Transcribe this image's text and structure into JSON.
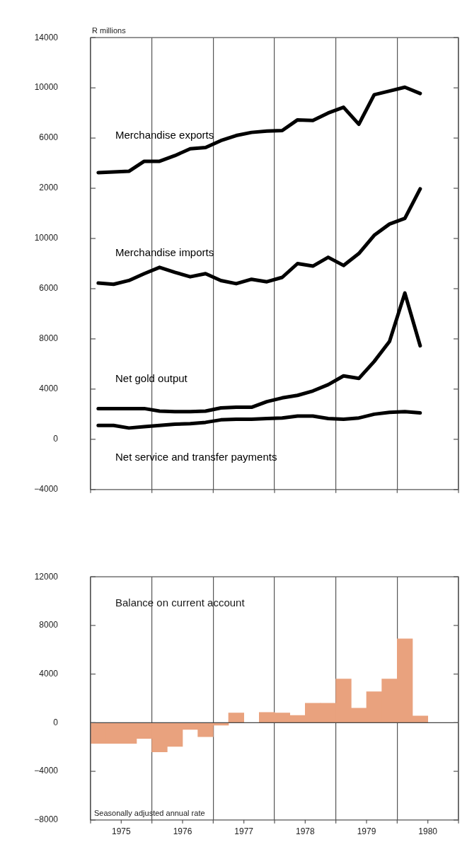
{
  "chart_data": [
    {
      "type": "line",
      "annotations": [
        "R millions"
      ],
      "x": [
        1975.125,
        1975.375,
        1975.625,
        1975.875,
        1976.125,
        1976.375,
        1976.625,
        1976.875,
        1977.125,
        1977.375,
        1977.625,
        1977.875,
        1978.125,
        1978.375,
        1978.625,
        1978.875,
        1979.125,
        1979.375,
        1979.625,
        1979.875,
        1980.125,
        1980.375
      ],
      "series": [
        {
          "name": "Merchandise exports",
          "color": "#000000",
          "axis": "y",
          "values": [
            3250,
            3300,
            3350,
            4150,
            4150,
            4600,
            5150,
            5250,
            5800,
            6200,
            6450,
            6550,
            6600,
            7450,
            7400,
            8000,
            8450,
            7100,
            9450,
            9750,
            10050,
            9550
          ]
        },
        {
          "name": "Merchandise imports",
          "color": "#000000",
          "axis": "y2",
          "values": [
            6450,
            6350,
            6650,
            7200,
            7700,
            7300,
            6950,
            7200,
            6650,
            6400,
            6750,
            6550,
            6900,
            8000,
            7800,
            8500,
            7850,
            8800,
            10250,
            11150,
            11600,
            13950
          ]
        },
        {
          "name": "Net gold output",
          "color": "#000000",
          "axis": "y3",
          "values": [
            2450,
            2450,
            2450,
            2450,
            2250,
            2200,
            2200,
            2250,
            2500,
            2550,
            2550,
            3000,
            3300,
            3500,
            3850,
            4350,
            5050,
            4850,
            6200,
            7800,
            11650,
            7450
          ]
        },
        {
          "name": "Net service and transfer payments",
          "color": "#000000",
          "axis": "y3",
          "values": [
            1100,
            1100,
            900,
            1000,
            1100,
            1200,
            1250,
            1350,
            1550,
            1600,
            1600,
            1650,
            1700,
            1850,
            1850,
            1650,
            1600,
            1700,
            2000,
            2150,
            2200,
            2100
          ]
        }
      ],
      "xlim": [
        1975,
        1981
      ],
      "xticks": [
        {
          "value": 1975,
          "label": null
        },
        {
          "value": 1976,
          "label": null
        },
        {
          "value": 1977,
          "label": null
        },
        {
          "value": 1978,
          "label": null
        },
        {
          "value": 1979,
          "label": null
        },
        {
          "value": 1980,
          "label": null
        },
        {
          "value": 1981,
          "label": null
        }
      ],
      "ylim": [
        -22000,
        14000
      ],
      "yticks": [
        2000,
        6000,
        10000,
        14000
      ],
      "y2lim": [
        -10000,
        26000
      ],
      "y2ticks": [
        6000,
        10000
      ],
      "y3lim": [
        -4000,
        32000
      ],
      "y3ticks": [
        -4000,
        0,
        4000,
        8000
      ],
      "grid": "x",
      "tick_labels": "y"
    },
    {
      "type": "bar",
      "x": [
        1975.125,
        1975.375,
        1975.625,
        1975.875,
        1976.125,
        1976.375,
        1976.625,
        1976.875,
        1977.125,
        1977.375,
        1977.625,
        1977.875,
        1978.125,
        1978.375,
        1978.625,
        1978.875,
        1979.125,
        1979.375,
        1979.625,
        1979.875,
        1980.125,
        1980.375
      ],
      "series": [
        {
          "name": "Balance on current account",
          "color": "#e9a27e",
          "values": [
            -1700,
            -1700,
            -1700,
            -1300,
            -2400,
            -1950,
            -550,
            -1150,
            -200,
            800,
            0,
            850,
            800,
            600,
            1600,
            1600,
            3600,
            1200,
            2550,
            3600,
            6900,
            550
          ]
        }
      ],
      "xlim": [
        1975,
        1981
      ],
      "xticks": [
        {
          "value": 1975,
          "label": null
        },
        {
          "value": 1975.5,
          "label": "1975"
        },
        {
          "value": 1976,
          "label": null
        },
        {
          "value": 1976.5,
          "label": "1976"
        },
        {
          "value": 1977,
          "label": null
        },
        {
          "value": 1977.5,
          "label": "1977"
        },
        {
          "value": 1978,
          "label": null
        },
        {
          "value": 1978.5,
          "label": "1978"
        },
        {
          "value": 1979,
          "label": null
        },
        {
          "value": 1979.5,
          "label": "1979"
        },
        {
          "value": 1980,
          "label": null
        },
        {
          "value": 1980.5,
          "label": "1980"
        },
        {
          "value": 1981,
          "label": null
        }
      ],
      "ylim": [
        -8000,
        12000
      ],
      "yticks": [
        -8000,
        -4000,
        0,
        4000,
        8000,
        12000
      ],
      "ref_lines": [
        {
          "axis": "y",
          "value": 0,
          "color": "#444444"
        }
      ],
      "annotations": [
        "Seasonally adjusted annual rate"
      ],
      "grid": "x"
    }
  ]
}
